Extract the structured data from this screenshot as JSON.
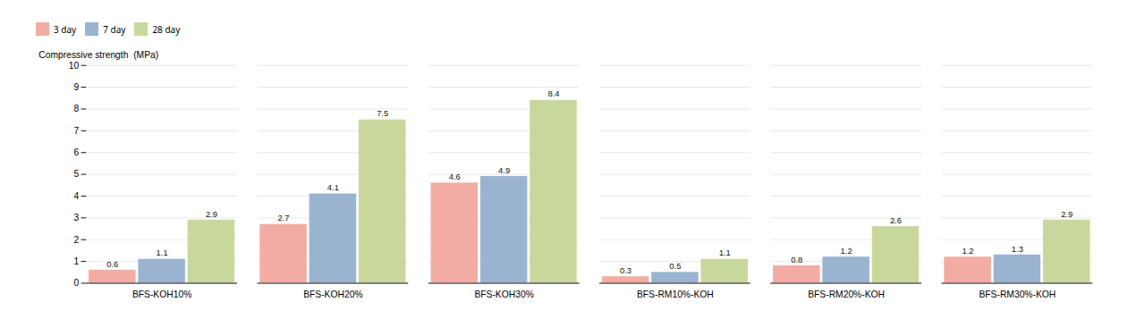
{
  "chart_data": {
    "type": "bar",
    "categories": [
      "BFS-KOH10%",
      "BFS-KOH20%",
      "BFS-KOH30%",
      "BFS-RM10%-KOH",
      "BFS-RM20%-KOH",
      "BFS-RM30%-KOH"
    ],
    "series": [
      {
        "name": "3 day",
        "color": "#f2aca4",
        "values": [
          0.6,
          2.7,
          4.6,
          0.3,
          0.8,
          1.2
        ]
      },
      {
        "name": "7 day",
        "color": "#9ab4d0",
        "values": [
          1.1,
          4.1,
          4.9,
          0.5,
          1.2,
          1.3
        ]
      },
      {
        "name": "28 day",
        "color": "#c8d89c",
        "values": [
          2.9,
          7.5,
          8.4,
          1.1,
          2.6,
          2.9
        ]
      }
    ],
    "ylabel": "Compressive strength  (MPa)",
    "ylim": [
      0,
      10
    ],
    "yticks": [
      0,
      1,
      2,
      3,
      4,
      5,
      6,
      7,
      8,
      9,
      10
    ],
    "grid": true,
    "legend": "top",
    "data_labels": true
  }
}
